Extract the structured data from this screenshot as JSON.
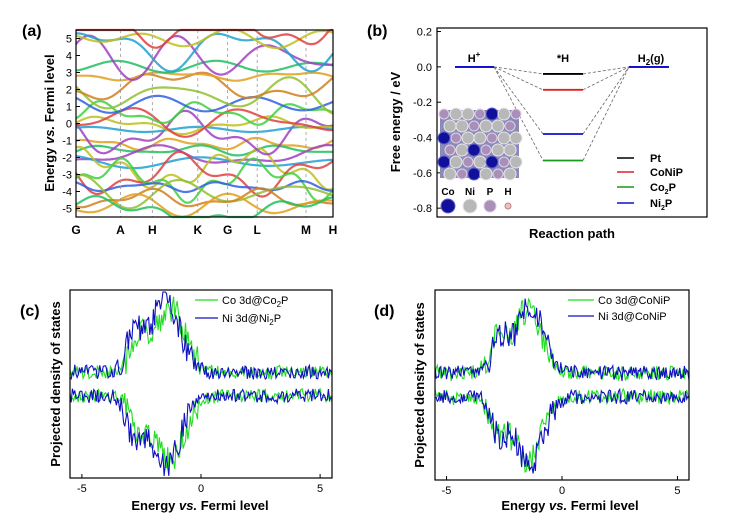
{
  "panels": {
    "a": "(a)",
    "b": "(b)",
    "c": "(c)",
    "d": "(d)"
  },
  "chart_data": [
    {
      "id": "a",
      "type": "line",
      "title": "",
      "xlabel": "",
      "ylabel_parts": [
        "Energy ",
        "vs.",
        " Fermi level"
      ],
      "ylim": [
        -5.5,
        5.5
      ],
      "yticks": [
        -5,
        -4,
        -3,
        -2,
        -1,
        0,
        1,
        2,
        3,
        4,
        5
      ],
      "kpoints": [
        "G",
        "A",
        "H",
        "K",
        "G",
        "L",
        "M",
        "H"
      ],
      "kpositions": [
        0,
        0.173,
        0.297,
        0.474,
        0.59,
        0.705,
        0.895,
        1.0
      ],
      "note": "electronic band structure, colored fat bands"
    },
    {
      "id": "b",
      "type": "line",
      "xlabel": "Reaction path",
      "ylabel": "Free energy / eV",
      "ylim": [
        -0.85,
        0.22
      ],
      "yticks": [
        "0.2",
        "0.0",
        "-0.2",
        "-0.4",
        "-0.6",
        "-0.8"
      ],
      "ytick_values": [
        0.2,
        0.0,
        -0.2,
        -0.4,
        -0.6,
        -0.8
      ],
      "states": [
        "H+",
        "*H",
        "H2(g)"
      ],
      "state_labels": {
        "h_plus": [
          "H",
          "+"
        ],
        "h_ads": "*H",
        "h2": [
          "H",
          "2",
          "(g)"
        ]
      },
      "series": [
        {
          "name": "Pt",
          "label": [
            "Pt"
          ],
          "color": "#000000",
          "values": [
            0.0,
            -0.04,
            0.0
          ]
        },
        {
          "name": "CoNiP",
          "label": [
            "CoNiP"
          ],
          "color": "#e02020",
          "values": [
            0.0,
            -0.13,
            0.0
          ]
        },
        {
          "name": "Co2P",
          "label": [
            "Co",
            "2",
            "P"
          ],
          "color": "#1a9a1a",
          "values": [
            0.0,
            -0.53,
            0.0
          ]
        },
        {
          "name": "Ni2P",
          "label": [
            "Ni",
            "2",
            "P"
          ],
          "color": "#1010d0",
          "values": [
            0.0,
            -0.38,
            0.0
          ]
        }
      ],
      "inset_legend": [
        "Co",
        "Ni",
        "P",
        "H"
      ]
    },
    {
      "id": "c",
      "type": "line",
      "xlabel_parts": [
        "Energy ",
        "vs.",
        " Fermi level"
      ],
      "ylabel": "Projected density of states",
      "xlim": [
        -5.5,
        5.5
      ],
      "xticks": [
        -5,
        0,
        5
      ],
      "series": [
        {
          "name": "Co 3d@Co2P",
          "label": [
            "Co 3d@Co",
            "2",
            "P"
          ],
          "color": "#22dd22"
        },
        {
          "name": "Ni 3d@Ni2P",
          "label": [
            "Ni 3d@Ni",
            "2",
            "P"
          ],
          "color": "#1010c0"
        }
      ]
    },
    {
      "id": "d",
      "type": "line",
      "xlabel_parts": [
        "Energy ",
        "vs.",
        " Fermi level"
      ],
      "ylabel": "Projected density of states",
      "xlim": [
        -5.5,
        5.5
      ],
      "xticks": [
        -5,
        0,
        5
      ],
      "series": [
        {
          "name": "Co 3d@CoNiP",
          "label": [
            "Co 3d@CoNiP"
          ],
          "color": "#22dd22"
        },
        {
          "name": "Ni 3d@CoNiP",
          "label": [
            "Ni 3d@CoNiP"
          ],
          "color": "#1010c0"
        }
      ]
    }
  ]
}
